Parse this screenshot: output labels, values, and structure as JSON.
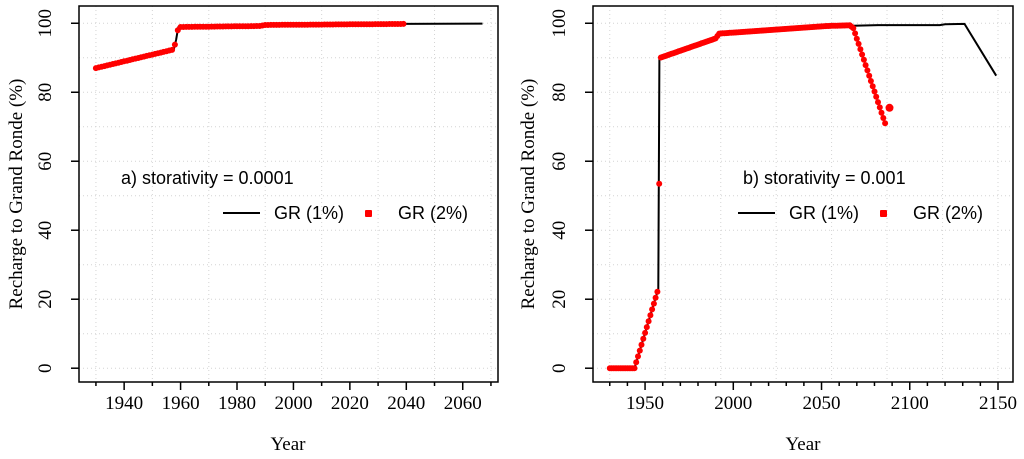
{
  "page": {
    "background": "#ffffff"
  },
  "colors": {
    "gr1": "#000000",
    "gr2": "#ff0000",
    "grid": "#d4d4d4",
    "axis": "#000000"
  },
  "chart_data": [
    {
      "type": "line",
      "panel_label": "a) storativity = 0.0001",
      "xlabel": "Year",
      "ylabel": "Recharge to Grand Ronde (%)",
      "xlim": [
        1924,
        2072.5
      ],
      "ylim": [
        -4,
        105
      ],
      "x_ticks": [
        1940,
        1960,
        1980,
        2000,
        2020,
        2040,
        2060
      ],
      "y_ticks": [
        0,
        20,
        40,
        60,
        80,
        100
      ],
      "x_minor_step": 10,
      "grid": {
        "x_values": [
          1930,
          1950,
          1970,
          1990,
          2010,
          2030,
          2050,
          2070
        ],
        "y_values": [
          0,
          10,
          20,
          30,
          40,
          50,
          60,
          70,
          80,
          90,
          100
        ]
      },
      "legend": [
        {
          "label": "GR (1%)",
          "type": "line",
          "color": "#000000"
        },
        {
          "label": "GR (2%)",
          "type": "point",
          "color": "#ff0000"
        }
      ],
      "legend_position": "inside lower-center",
      "series": [
        {
          "name": "GR (1%)",
          "kind": "line",
          "color": "#000000",
          "anchors": [
            [
              1930,
              87
            ],
            [
              1957.6,
              92.4
            ],
            [
              1958.4,
              95.2
            ],
            [
              1959.2,
              98.9
            ],
            [
              1988,
              99.2
            ],
            [
              1990,
              99.5
            ],
            [
              2038,
              99.8
            ],
            [
              2067,
              99.9
            ]
          ]
        },
        {
          "name": "GR (2%)",
          "kind": "points",
          "color": "#ff0000",
          "sample_range": [
            1930,
            2039
          ],
          "sample_step": 1,
          "anchors": [
            [
              1930,
              87
            ],
            [
              1957.6,
              92.4
            ],
            [
              1958.4,
              95.2
            ],
            [
              1959.2,
              98.9
            ],
            [
              1988,
              99.2
            ],
            [
              1990,
              99.5
            ],
            [
              2039,
              99.8
            ]
          ],
          "extra_points": []
        }
      ]
    },
    {
      "type": "line",
      "panel_label": "b) storativity = 0.001",
      "xlabel": "Year",
      "ylabel": "Recharge to Grand Ronde (%)",
      "xlim": [
        1920.5,
        2158.5
      ],
      "ylim": [
        -4,
        105
      ],
      "x_ticks": [
        1950,
        2000,
        2050,
        2100,
        2150
      ],
      "y_ticks": [
        0,
        20,
        40,
        60,
        80,
        100
      ],
      "x_minor_step": 10,
      "grid": {
        "x_values": [
          1930,
          1961.4,
          1992.9,
          2024.3,
          2055.7,
          2087.1,
          2118.6,
          2150
        ],
        "y_values": [
          0,
          10,
          20,
          30,
          40,
          50,
          60,
          70,
          80,
          90,
          100
        ]
      },
      "legend": [
        {
          "label": "GR (1%)",
          "type": "line",
          "color": "#000000"
        },
        {
          "label": "GR (2%)",
          "type": "point",
          "color": "#ff0000"
        }
      ],
      "legend_position": "inside lower-center",
      "series": [
        {
          "name": "GR (1%)",
          "kind": "line",
          "color": "#000000",
          "anchors": [
            [
              1930,
              0
            ],
            [
              1944,
              0
            ],
            [
              1957.5,
              23
            ],
            [
              1958.1,
              90
            ],
            [
              1990,
              95.6
            ],
            [
              1992,
              97
            ],
            [
              2053,
              99.2
            ],
            [
              2068,
              99.3
            ],
            [
              2082,
              99.45
            ],
            [
              2117,
              99.45
            ],
            [
              2120,
              99.7
            ],
            [
              2131,
              99.8
            ],
            [
              2149,
              84.8
            ]
          ]
        },
        {
          "name": "GR (2%)",
          "kind": "points",
          "color": "#ff0000",
          "sample_range": [
            1930,
            2086
          ],
          "sample_step": 1,
          "anchors": [
            [
              1930,
              0
            ],
            [
              1944,
              0
            ],
            [
              1957.5,
              23
            ],
            [
              1958.6,
              90
            ],
            [
              1990,
              95.6
            ],
            [
              1992,
              97
            ],
            [
              2053,
              99.2
            ],
            [
              2066,
              99.4
            ],
            [
              2068,
              98.6
            ],
            [
              2086,
              71
            ]
          ],
          "extra_points": [
            [
              2088.5,
              75.5,
              4
            ]
          ]
        }
      ]
    }
  ]
}
